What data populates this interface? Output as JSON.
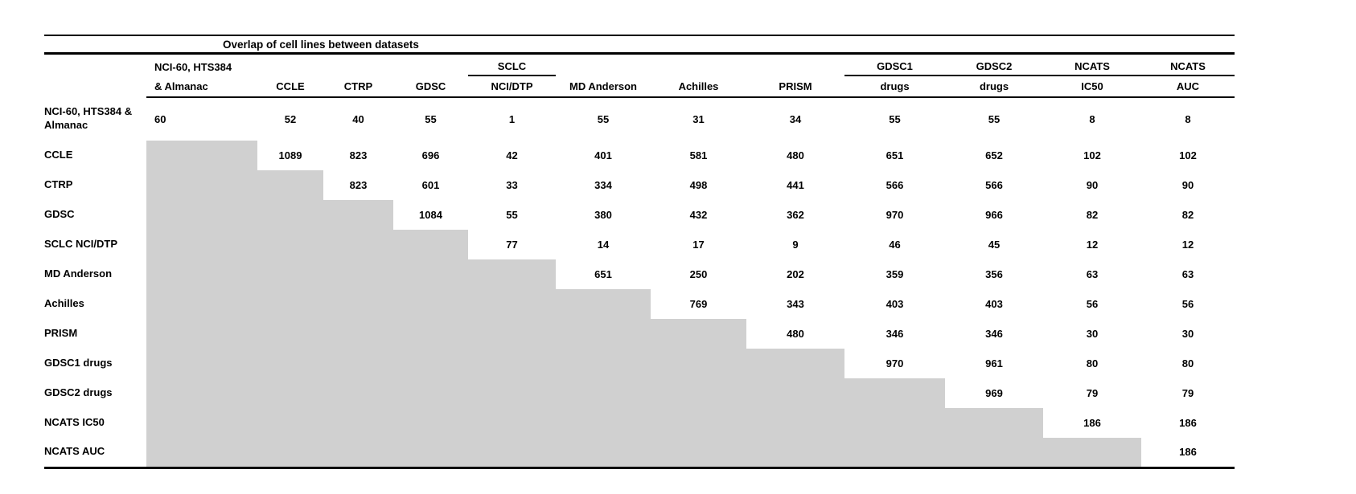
{
  "title": "Overlap of cell lines between datasets",
  "colors": {
    "shaded_cell": "#d0d0d0",
    "rule": "#000000",
    "text": "#000000",
    "background": "#ffffff"
  },
  "chart_data": {
    "type": "table",
    "title": "Overlap of cell lines between datasets",
    "description_layout": "upper-triangular overlap matrix; lower triangle shaded gray; diagonal holds dataset's own cell-line count",
    "columns": [
      {
        "top": "NCI-60, HTS384",
        "bottom": "& Almanac",
        "underline_top": false,
        "align": "left"
      },
      {
        "top": "",
        "bottom": "CCLE",
        "underline_top": false,
        "align": "center"
      },
      {
        "top": "",
        "bottom": "CTRP",
        "underline_top": false,
        "align": "center"
      },
      {
        "top": "",
        "bottom": "GDSC",
        "underline_top": false,
        "align": "center"
      },
      {
        "top": "SCLC",
        "bottom": "NCI/DTP",
        "underline_top": true,
        "align": "center"
      },
      {
        "top": "",
        "bottom": "MD Anderson",
        "underline_top": false,
        "align": "center"
      },
      {
        "top": "",
        "bottom": "Achilles",
        "underline_top": false,
        "align": "center"
      },
      {
        "top": "",
        "bottom": "PRISM",
        "underline_top": false,
        "align": "center"
      },
      {
        "top": "GDSC1",
        "bottom": "drugs",
        "underline_top": true,
        "align": "center"
      },
      {
        "top": "GDSC2",
        "bottom": "drugs",
        "underline_top": true,
        "align": "center"
      },
      {
        "top": "NCATS",
        "bottom": "IC50",
        "underline_top": true,
        "align": "center"
      },
      {
        "top": "NCATS",
        "bottom": "AUC",
        "underline_top": true,
        "align": "center"
      }
    ],
    "row_labels": [
      "NCI-60, HTS384 & Almanac",
      "CCLE",
      "CTRP",
      "GDSC",
      "SCLC NCI/DTP",
      "MD Anderson",
      "Achilles",
      "PRISM",
      "GDSC1 drugs",
      "GDSC2 drugs",
      "NCATS IC50",
      "NCATS AUC"
    ],
    "matrix": [
      [
        60,
        52,
        40,
        55,
        1,
        55,
        31,
        34,
        55,
        55,
        8,
        8
      ],
      [
        null,
        1089,
        823,
        696,
        42,
        401,
        581,
        480,
        651,
        652,
        102,
        102
      ],
      [
        null,
        null,
        823,
        601,
        33,
        334,
        498,
        441,
        566,
        566,
        90,
        90
      ],
      [
        null,
        null,
        null,
        1084,
        55,
        380,
        432,
        362,
        970,
        966,
        82,
        82
      ],
      [
        null,
        null,
        null,
        null,
        77,
        14,
        17,
        9,
        46,
        45,
        12,
        12
      ],
      [
        null,
        null,
        null,
        null,
        null,
        651,
        250,
        202,
        359,
        356,
        63,
        63
      ],
      [
        null,
        null,
        null,
        null,
        null,
        null,
        769,
        343,
        403,
        403,
        56,
        56
      ],
      [
        null,
        null,
        null,
        null,
        null,
        null,
        null,
        480,
        346,
        346,
        30,
        30
      ],
      [
        null,
        null,
        null,
        null,
        null,
        null,
        null,
        null,
        970,
        961,
        80,
        80
      ],
      [
        null,
        null,
        null,
        null,
        null,
        null,
        null,
        null,
        null,
        969,
        79,
        79
      ],
      [
        null,
        null,
        null,
        null,
        null,
        null,
        null,
        null,
        null,
        null,
        186,
        186
      ],
      [
        null,
        null,
        null,
        null,
        null,
        null,
        null,
        null,
        null,
        null,
        null,
        186
      ]
    ]
  }
}
